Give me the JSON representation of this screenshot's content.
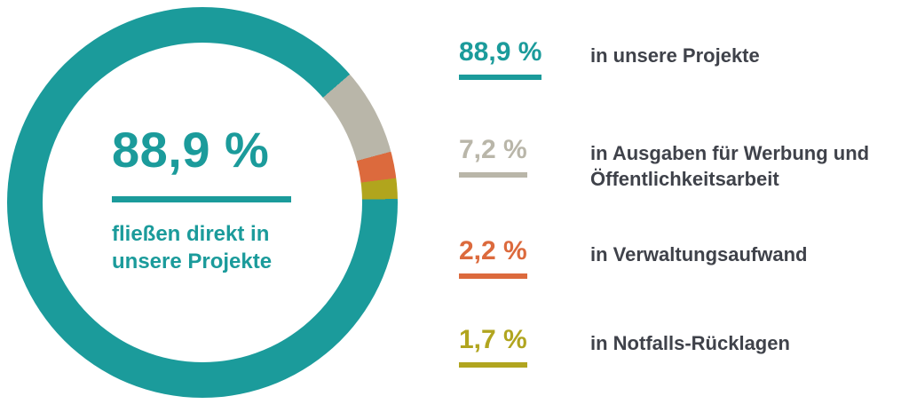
{
  "colors": {
    "teal": "#1b9b9b",
    "gray_beige": "#b9b6a9",
    "orange": "#dc6a3d",
    "olive_yellow": "#b1a51f",
    "text_dark": "#3f424a"
  },
  "donut": {
    "center_value": "88,9 %",
    "caption_line1": "fließen direkt in",
    "caption_line2": "unsere Projekte"
  },
  "legend": [
    {
      "value": "88,9 %",
      "label": "in unsere Projekte",
      "color": "#1b9b9b"
    },
    {
      "value": "7,2 %",
      "label": "in Ausgaben für Werbung und Öffentlichkeitsarbeit",
      "color": "#b9b6a9"
    },
    {
      "value": "2,2 %",
      "label": "in Verwaltungsaufwand",
      "color": "#dc6a3d"
    },
    {
      "value": "1,7 %",
      "label": "in Notfalls-Rücklagen",
      "color": "#b1a51f"
    }
  ],
  "chart_data": {
    "type": "pie",
    "donut": true,
    "categories": [
      "in unsere Projekte",
      "in Ausgaben für Werbung und Öffentlichkeitsarbeit",
      "in Verwaltungsaufwand",
      "in Notfalls-Rücklagen"
    ],
    "values": [
      88.9,
      7.2,
      2.2,
      1.7
    ],
    "unit": "%",
    "colors": [
      "#1b9b9b",
      "#b9b6a9",
      "#dc6a3d",
      "#b1a51f"
    ],
    "center_label": "88,9 % fließen direkt in unsere Projekte",
    "start_angle_deg": 49,
    "segment_order_clockwise": [
      "7,2 %",
      "2,2 %",
      "1,7 %",
      "88,9 %"
    ],
    "legend_position": "right",
    "title": ""
  }
}
